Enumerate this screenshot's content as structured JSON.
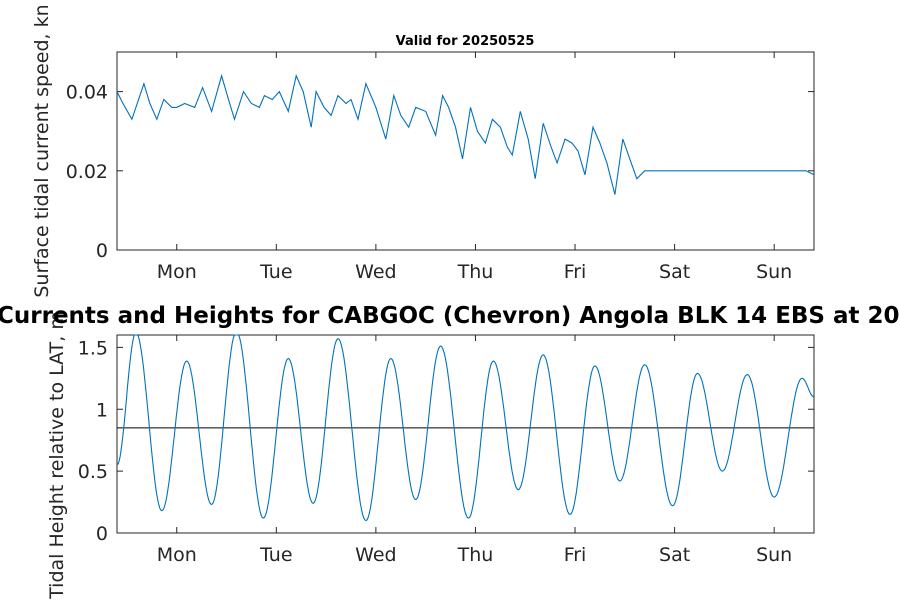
{
  "figure_title": "Currents and Heights for CABGOC (Chevron)  Angola BLK 14  EBS at 20",
  "chart_data": [
    {
      "type": "line",
      "title": "Valid for 20250525",
      "xlabel": "",
      "ylabel": "Surface tidal current speed, kn",
      "x_unit": "days",
      "xlim": [
        0,
        7
      ],
      "ylim": [
        0,
        0.05
      ],
      "yticks": [
        0,
        0.02,
        0.04
      ],
      "ytick_labels": [
        "0",
        "0.02",
        "0.04"
      ],
      "xticks": [
        0.6,
        1.6,
        2.6,
        3.6,
        4.6,
        5.6,
        6.6
      ],
      "xtick_labels": [
        "Mon",
        "Tue",
        "Wed",
        "Thu",
        "Fri",
        "Sat",
        "Sun"
      ],
      "grid": false,
      "color": "#0072BD",
      "series": [
        {
          "x": [
            0.0,
            0.06,
            0.15,
            0.27,
            0.33,
            0.4,
            0.47,
            0.55,
            0.6,
            0.68,
            0.78,
            0.86,
            0.95,
            1.05,
            1.12,
            1.18,
            1.27,
            1.35,
            1.43,
            1.48,
            1.56,
            1.63,
            1.72,
            1.8,
            1.87,
            1.95,
            2.0,
            2.08,
            2.15,
            2.22,
            2.3,
            2.35,
            2.42,
            2.5,
            2.6,
            2.7,
            2.78,
            2.85,
            2.93,
            3.0,
            3.1,
            3.2,
            3.27,
            3.33,
            3.4,
            3.47,
            3.55,
            3.62,
            3.7,
            3.77,
            3.85,
            3.92,
            3.97,
            4.05,
            4.13,
            4.2,
            4.28,
            4.36,
            4.42,
            4.5,
            4.57,
            4.63,
            4.7,
            4.78,
            4.85,
            4.92,
            5.0,
            5.08,
            5.15,
            5.22,
            5.3,
            5.38,
            5.45,
            5.5,
            5.58,
            5.65,
            5.72,
            5.8,
            5.85,
            5.92,
            6.0,
            6.06,
            6.13,
            6.2,
            6.27,
            6.33,
            6.4,
            6.47,
            6.55,
            6.62,
            6.7,
            6.78,
            6.85,
            6.92,
            7.0
          ],
          "y": [
            0.04,
            0.037,
            0.033,
            0.042,
            0.037,
            0.033,
            0.038,
            0.036,
            0.036,
            0.037,
            0.036,
            0.041,
            0.035,
            0.044,
            0.038,
            0.033,
            0.04,
            0.037,
            0.036,
            0.039,
            0.038,
            0.04,
            0.035,
            0.044,
            0.04,
            0.031,
            0.04,
            0.036,
            0.034,
            0.039,
            0.037,
            0.038,
            0.033,
            0.042,
            0.036,
            0.028,
            0.039,
            0.034,
            0.031,
            0.036,
            0.035,
            0.029,
            0.039,
            0.036,
            0.031,
            0.023,
            0.036,
            0.03,
            0.027,
            0.033,
            0.031,
            0.026,
            0.024,
            0.035,
            0.028,
            0.018,
            0.032,
            0.026,
            0.022,
            0.028,
            0.027,
            0.025,
            0.019,
            0.031,
            0.027,
            0.022,
            0.014,
            0.028,
            0.023,
            0.018,
            0.02,
            0.02,
            0.02,
            0.02,
            0.02,
            0.02,
            0.02,
            0.02,
            0.02,
            0.02,
            0.02,
            0.02,
            0.02,
            0.02,
            0.02,
            0.02,
            0.02,
            0.02,
            0.02,
            0.02,
            0.02,
            0.02,
            0.02,
            0.02,
            0.019
          ]
        }
      ]
    },
    {
      "type": "line",
      "title": "",
      "xlabel": "",
      "ylabel": "Tidal Height relative to LAT, m",
      "x_unit": "days",
      "xlim": [
        0,
        7
      ],
      "ylim": [
        0,
        1.6
      ],
      "yticks": [
        0,
        0.5,
        1,
        1.5
      ],
      "ytick_labels": [
        "0",
        "0.5",
        "1",
        "1.5"
      ],
      "xticks": [
        0.6,
        1.6,
        2.6,
        3.6,
        4.6,
        5.6,
        6.6
      ],
      "xtick_labels": [
        "Mon",
        "Tue",
        "Wed",
        "Thu",
        "Fri",
        "Sat",
        "Sun"
      ],
      "grid": false,
      "reference_line": 0.85,
      "color": "#0072BD",
      "extrema": [
        {
          "x": 0.0,
          "y": 0.55
        },
        {
          "x": 0.19,
          "y": 1.62
        },
        {
          "x": 0.45,
          "y": 0.18
        },
        {
          "x": 0.7,
          "y": 1.39
        },
        {
          "x": 0.95,
          "y": 0.23
        },
        {
          "x": 1.2,
          "y": 1.63
        },
        {
          "x": 1.47,
          "y": 0.12
        },
        {
          "x": 1.72,
          "y": 1.41
        },
        {
          "x": 1.97,
          "y": 0.24
        },
        {
          "x": 2.22,
          "y": 1.57
        },
        {
          "x": 2.5,
          "y": 0.1
        },
        {
          "x": 2.75,
          "y": 1.41
        },
        {
          "x": 3.0,
          "y": 0.27
        },
        {
          "x": 3.25,
          "y": 1.51
        },
        {
          "x": 3.53,
          "y": 0.12
        },
        {
          "x": 3.78,
          "y": 1.39
        },
        {
          "x": 4.03,
          "y": 0.35
        },
        {
          "x": 4.28,
          "y": 1.44
        },
        {
          "x": 4.55,
          "y": 0.15
        },
        {
          "x": 4.8,
          "y": 1.35
        },
        {
          "x": 5.05,
          "y": 0.42
        },
        {
          "x": 5.3,
          "y": 1.36
        },
        {
          "x": 5.58,
          "y": 0.22
        },
        {
          "x": 5.83,
          "y": 1.29
        },
        {
          "x": 6.08,
          "y": 0.5
        },
        {
          "x": 6.33,
          "y": 1.28
        },
        {
          "x": 6.6,
          "y": 0.29
        },
        {
          "x": 6.88,
          "y": 1.25
        },
        {
          "x": 7.0,
          "y": 1.1
        }
      ]
    }
  ]
}
